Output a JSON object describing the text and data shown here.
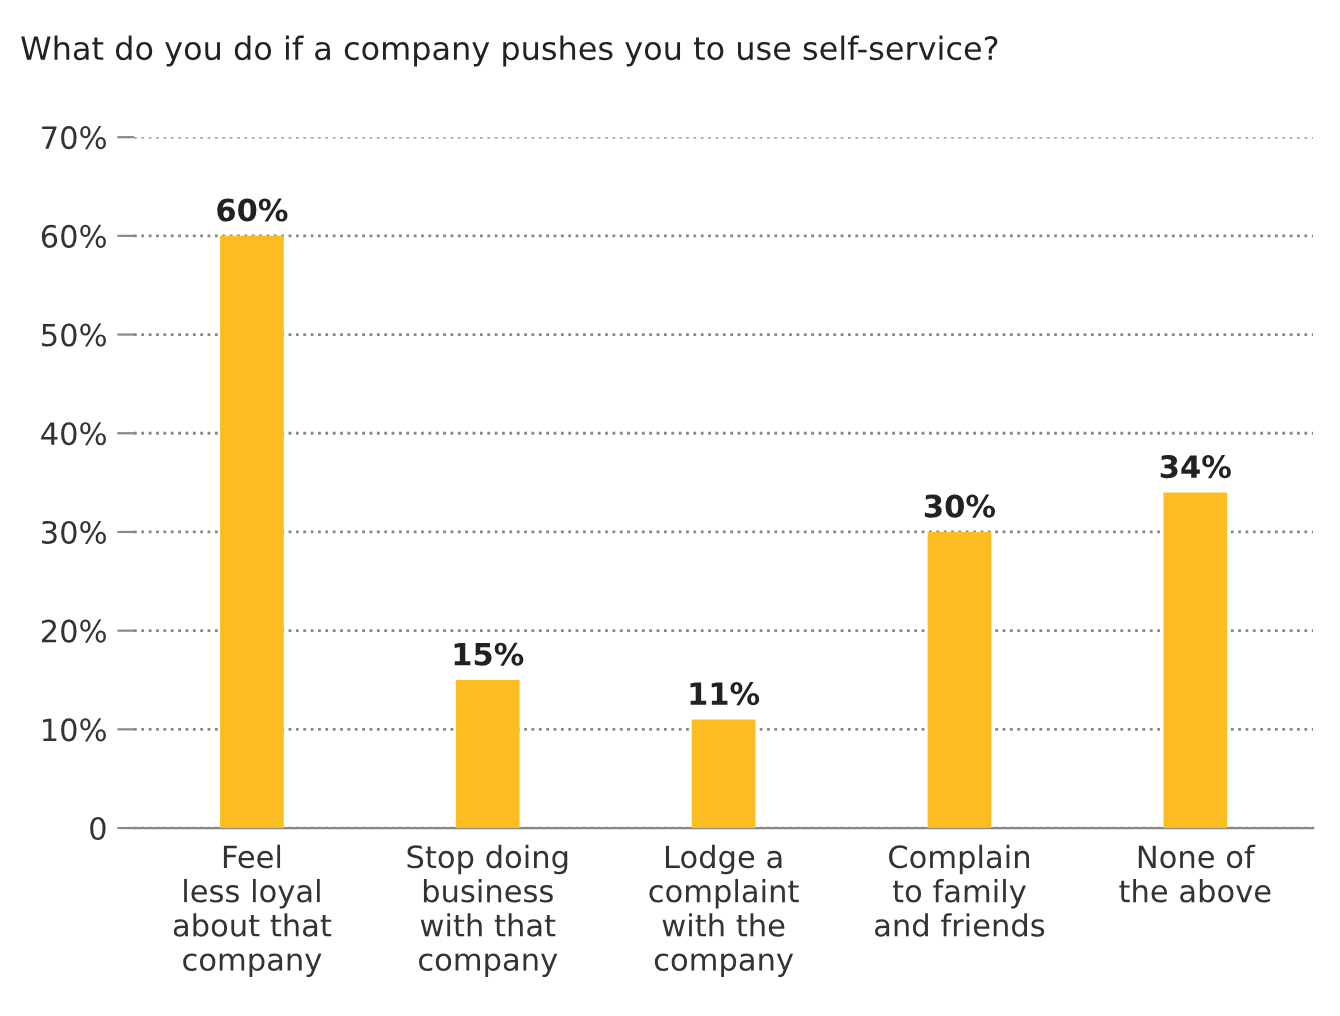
{
  "chart_data": {
    "type": "bar",
    "title": "What do you do if a company pushes you to use self-service?",
    "categories": [
      "Feel\nless loyal\nabout that\ncompany",
      "Stop doing\nbusiness\nwith that\ncompany",
      "Lodge a\ncomplaint\nwith the\ncompany",
      "Complain\nto family\nand friends",
      "None of\nthe above"
    ],
    "values": [
      60,
      15,
      11,
      30,
      34
    ],
    "value_labels": [
      "60%",
      "15%",
      "11%",
      "30%",
      "34%"
    ],
    "color": "#fbbd22",
    "ylim": [
      0,
      70
    ],
    "yticks": [
      0,
      {
        "value": 10,
        "label": "10%"
      },
      {
        "value": 20,
        "label": "20%"
      },
      {
        "value": 30,
        "label": "30%"
      },
      {
        "value": 40,
        "label": "40%"
      },
      {
        "value": 50,
        "label": "50%"
      },
      {
        "value": 60,
        "label": "60%"
      },
      {
        "value": 70,
        "label": "70%"
      }
    ],
    "grid": "y"
  }
}
